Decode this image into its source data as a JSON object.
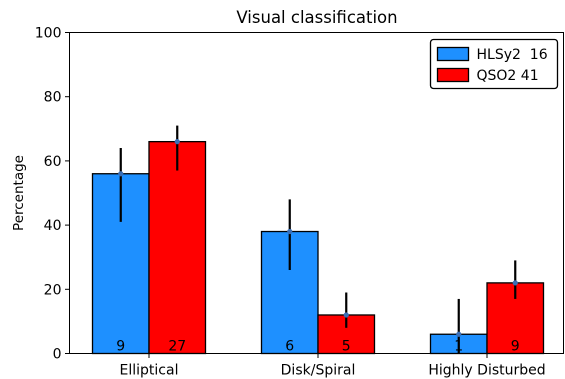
{
  "chart_data": {
    "type": "bar",
    "title": "Visual classification",
    "xlabel": "",
    "ylabel": "Percentage",
    "ylim": [
      0,
      100
    ],
    "yticks": [
      0,
      20,
      40,
      60,
      80,
      100
    ],
    "categories": [
      "Elliptical",
      "Disk/Spiral",
      "Highly Disturbed"
    ],
    "grid": false,
    "legend_position": "top-right",
    "series": [
      {
        "name": "HLSy2  16",
        "color": "#1e90ff",
        "values": [
          56,
          38,
          6
        ],
        "err_low": [
          41,
          26,
          0
        ],
        "err_high": [
          64,
          48,
          17
        ],
        "counts": [
          "9",
          "6",
          "1"
        ]
      },
      {
        "name": "QSO2 41",
        "color": "#ff0000",
        "values": [
          66,
          12,
          22
        ],
        "err_low": [
          57,
          8,
          17
        ],
        "err_high": [
          71,
          19,
          29
        ],
        "counts": [
          "27",
          "5",
          "9"
        ]
      }
    ]
  }
}
